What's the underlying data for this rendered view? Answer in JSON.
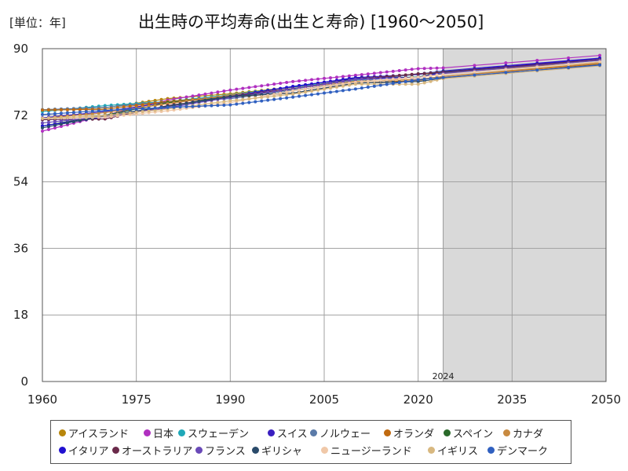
{
  "unit_label": "[単位：年]",
  "chart_title": "出生時の平均寿命(出生と寿命) [1960〜2050]",
  "chart_data": {
    "type": "line",
    "title": "出生時の平均寿命(出生と寿命) [1960〜2050]",
    "unit": "[単位：年]",
    "xlim": [
      1960,
      2050
    ],
    "ylim": [
      0,
      90
    ],
    "xticks": [
      1960,
      1975,
      1990,
      2005,
      2020,
      2035,
      2050
    ],
    "yticks": [
      0,
      18,
      36,
      54,
      72,
      90
    ],
    "grid": true,
    "forecast_start": 2024,
    "forecast_label": "2024",
    "legend_position": "bottom",
    "series": [
      {
        "name": "アイスランド",
        "color": "#b8860b",
        "values": [
          [
            1960,
            73.5
          ],
          [
            1970,
            74.0
          ],
          [
            1980,
            76.5
          ],
          [
            1990,
            77.8
          ],
          [
            2000,
            79.6
          ],
          [
            2010,
            81.5
          ],
          [
            2020,
            83.1
          ],
          [
            2024,
            83.5
          ],
          [
            2050,
            86.5
          ]
        ]
      },
      {
        "name": "日本",
        "color": "#b030c0",
        "values": [
          [
            1960,
            67.7
          ],
          [
            1970,
            72.0
          ],
          [
            1980,
            76.1
          ],
          [
            1990,
            78.8
          ],
          [
            2000,
            81.1
          ],
          [
            2010,
            82.8
          ],
          [
            2020,
            84.6
          ],
          [
            2024,
            84.8
          ],
          [
            2050,
            88.3
          ]
        ]
      },
      {
        "name": "スウェーデン",
        "color": "#1fa8b8",
        "values": [
          [
            1960,
            73.0
          ],
          [
            1970,
            74.6
          ],
          [
            1980,
            75.7
          ],
          [
            1990,
            77.5
          ],
          [
            2000,
            79.6
          ],
          [
            2010,
            81.5
          ],
          [
            2020,
            82.4
          ],
          [
            2024,
            83.4
          ],
          [
            2050,
            87.0
          ]
        ]
      },
      {
        "name": "スイス",
        "color": "#3a1fc0",
        "values": [
          [
            1960,
            71.3
          ],
          [
            1970,
            73.0
          ],
          [
            1980,
            75.5
          ],
          [
            1990,
            77.2
          ],
          [
            2000,
            79.7
          ],
          [
            2010,
            82.2
          ],
          [
            2020,
            83.0
          ],
          [
            2024,
            84.0
          ],
          [
            2050,
            87.6
          ]
        ]
      },
      {
        "name": "ノルウェー",
        "color": "#5a7aa8",
        "values": [
          [
            1960,
            73.5
          ],
          [
            1970,
            74.1
          ],
          [
            1980,
            75.7
          ],
          [
            1990,
            76.5
          ],
          [
            2000,
            78.7
          ],
          [
            2010,
            81.0
          ],
          [
            2020,
            83.2
          ],
          [
            2024,
            83.8
          ],
          [
            2050,
            87.2
          ]
        ]
      },
      {
        "name": "オランダ",
        "color": "#c06a10",
        "values": [
          [
            1960,
            73.4
          ],
          [
            1970,
            73.6
          ],
          [
            1980,
            75.7
          ],
          [
            1990,
            77.0
          ],
          [
            2000,
            78.0
          ],
          [
            2010,
            80.7
          ],
          [
            2020,
            81.4
          ],
          [
            2024,
            82.5
          ],
          [
            2050,
            86.0
          ]
        ]
      },
      {
        "name": "スペイン",
        "color": "#2a6a2a",
        "values": [
          [
            1960,
            69.1
          ],
          [
            1970,
            72.0
          ],
          [
            1980,
            75.4
          ],
          [
            1990,
            76.9
          ],
          [
            2000,
            79.0
          ],
          [
            2010,
            82.0
          ],
          [
            2020,
            82.3
          ],
          [
            2024,
            83.8
          ],
          [
            2050,
            87.0
          ]
        ]
      },
      {
        "name": "カナダ",
        "color": "#c88a40",
        "values": [
          [
            1960,
            71.1
          ],
          [
            1970,
            72.7
          ],
          [
            1980,
            75.1
          ],
          [
            1990,
            77.4
          ],
          [
            2000,
            79.2
          ],
          [
            2010,
            81.2
          ],
          [
            2020,
            81.7
          ],
          [
            2024,
            82.5
          ],
          [
            2050,
            86.3
          ]
        ]
      },
      {
        "name": "イタリア",
        "color": "#2010d0",
        "values": [
          [
            1960,
            69.1
          ],
          [
            1970,
            71.6
          ],
          [
            1980,
            74.0
          ],
          [
            1990,
            77.0
          ],
          [
            2000,
            79.8
          ],
          [
            2010,
            82.0
          ],
          [
            2020,
            82.2
          ],
          [
            2024,
            83.7
          ],
          [
            2050,
            87.5
          ]
        ]
      },
      {
        "name": "オーストラリア",
        "color": "#6a2a4a",
        "values": [
          [
            1960,
            70.8
          ],
          [
            1970,
            71.0
          ],
          [
            1980,
            74.6
          ],
          [
            1990,
            77.0
          ],
          [
            2000,
            79.2
          ],
          [
            2010,
            81.7
          ],
          [
            2020,
            83.2
          ],
          [
            2024,
            83.6
          ],
          [
            2050,
            87.2
          ]
        ]
      },
      {
        "name": "フランス",
        "color": "#6a4ab8",
        "values": [
          [
            1960,
            69.9
          ],
          [
            1970,
            71.7
          ],
          [
            1980,
            74.1
          ],
          [
            1990,
            76.8
          ],
          [
            2000,
            79.1
          ],
          [
            2010,
            81.7
          ],
          [
            2020,
            82.2
          ],
          [
            2024,
            83.3
          ],
          [
            2050,
            87.0
          ]
        ]
      },
      {
        "name": "ギリシャ",
        "color": "#2a4a6a",
        "values": [
          [
            1960,
            68.6
          ],
          [
            1970,
            71.9
          ],
          [
            1980,
            74.4
          ],
          [
            1990,
            77.1
          ],
          [
            2000,
            78.0
          ],
          [
            2010,
            80.7
          ],
          [
            2020,
            81.1
          ],
          [
            2024,
            82.0
          ],
          [
            2050,
            85.8
          ]
        ]
      },
      {
        "name": "ニュージーランド",
        "color": "#f0c8a8",
        "values": [
          [
            1960,
            71.2
          ],
          [
            1970,
            71.5
          ],
          [
            1980,
            73.2
          ],
          [
            1990,
            75.4
          ],
          [
            2000,
            78.6
          ],
          [
            2010,
            80.9
          ],
          [
            2020,
            82.3
          ],
          [
            2024,
            83.0
          ],
          [
            2050,
            86.6
          ]
        ]
      },
      {
        "name": "イギリス",
        "color": "#d8b880",
        "values": [
          [
            1960,
            71.1
          ],
          [
            1970,
            71.9
          ],
          [
            1980,
            73.7
          ],
          [
            1990,
            75.9
          ],
          [
            2000,
            77.7
          ],
          [
            2010,
            80.4
          ],
          [
            2020,
            80.4
          ],
          [
            2024,
            81.9
          ],
          [
            2050,
            85.5
          ]
        ]
      },
      {
        "name": "デンマーク",
        "color": "#3060c0",
        "values": [
          [
            1960,
            72.2
          ],
          [
            1970,
            73.3
          ],
          [
            1980,
            74.1
          ],
          [
            1990,
            74.8
          ],
          [
            2000,
            76.9
          ],
          [
            2010,
            79.1
          ],
          [
            2020,
            81.6
          ],
          [
            2024,
            82.2
          ],
          [
            2050,
            85.7
          ]
        ]
      }
    ]
  }
}
